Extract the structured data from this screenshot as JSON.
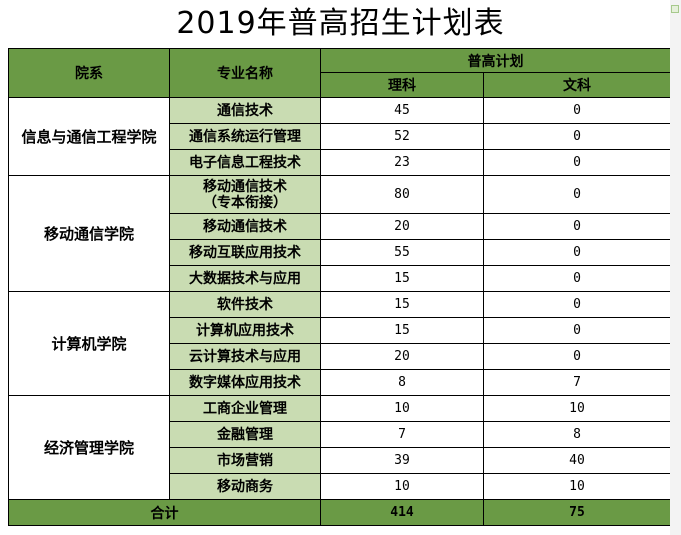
{
  "title": "2019年普高招生计划表",
  "header": {
    "college": "院系",
    "major": "专业名称",
    "plan": "普高计划",
    "science": "理科",
    "arts": "文科"
  },
  "groups": [
    {
      "college": "信息与通信工程学院",
      "rows": [
        {
          "major": "通信技术",
          "science": "45",
          "arts": "0"
        },
        {
          "major": "通信系统运行管理",
          "science": "52",
          "arts": "0"
        },
        {
          "major": "电子信息工程技术",
          "science": "23",
          "arts": "0"
        }
      ]
    },
    {
      "college": "移动通信学院",
      "rows": [
        {
          "major": "移动通信技术",
          "major_line2": "（专本衔接）",
          "science": "80",
          "arts": "0"
        },
        {
          "major": "移动通信技术",
          "science": "20",
          "arts": "0"
        },
        {
          "major": "移动互联应用技术",
          "science": "55",
          "arts": "0"
        },
        {
          "major": "大数据技术与应用",
          "science": "15",
          "arts": "0"
        }
      ]
    },
    {
      "college": "计算机学院",
      "rows": [
        {
          "major": "软件技术",
          "science": "15",
          "arts": "0"
        },
        {
          "major": "计算机应用技术",
          "science": "15",
          "arts": "0"
        },
        {
          "major": "云计算技术与应用",
          "science": "20",
          "arts": "0"
        },
        {
          "major": "数字媒体应用技术",
          "science": "8",
          "arts": "7"
        }
      ]
    },
    {
      "college": "经济管理学院",
      "rows": [
        {
          "major": "工商企业管理",
          "science": "10",
          "arts": "10"
        },
        {
          "major": "金融管理",
          "science": "7",
          "arts": "8"
        },
        {
          "major": "市场营销",
          "science": "39",
          "arts": "40"
        },
        {
          "major": "移动商务",
          "science": "10",
          "arts": "10"
        }
      ]
    }
  ],
  "total": {
    "label": "合计",
    "science": "414",
    "arts": "75"
  },
  "colors": {
    "header_green": "#6a9a45",
    "major_green": "#c9dcb2"
  }
}
